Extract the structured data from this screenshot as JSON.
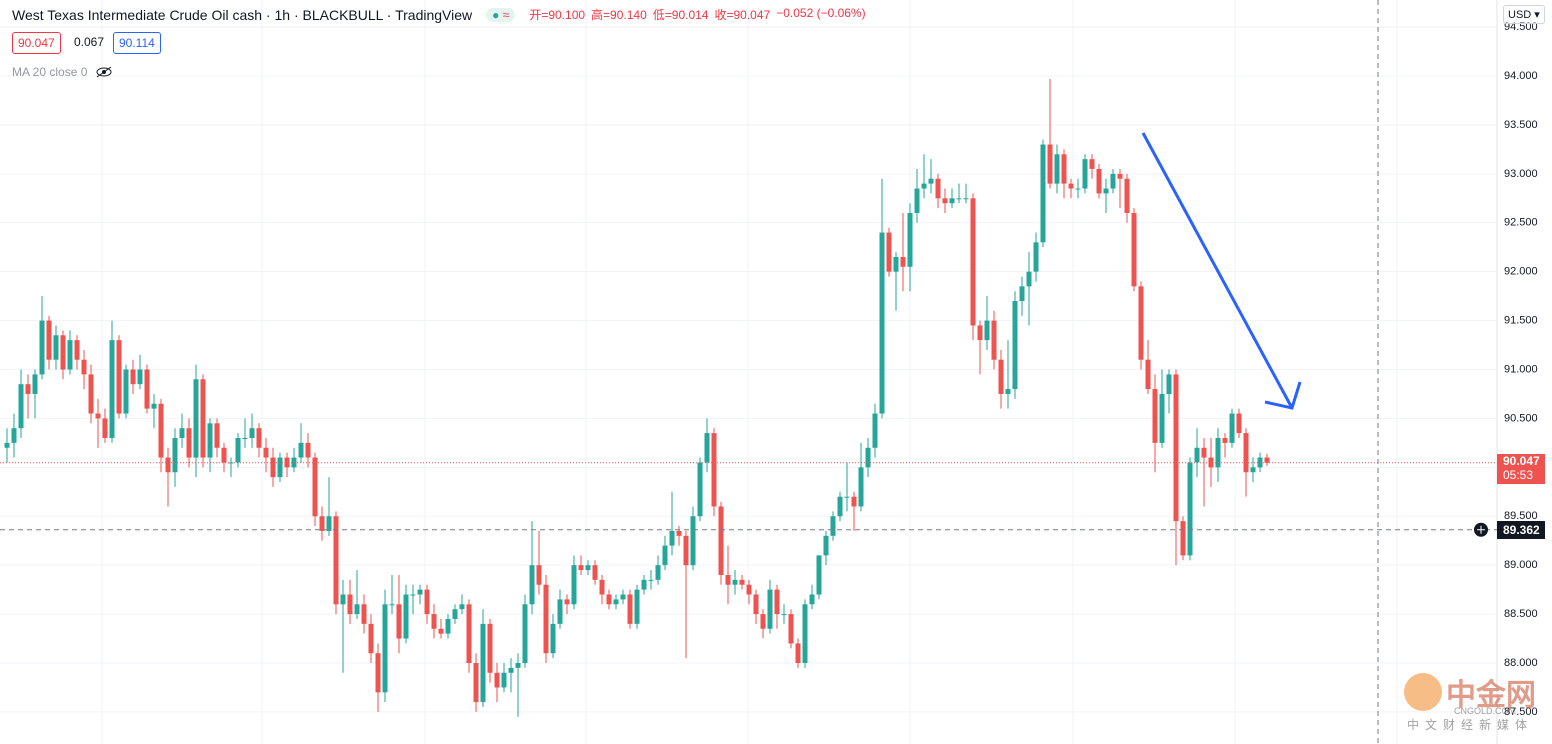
{
  "chart_data": {
    "type": "candlestick",
    "title": "West Texas Intermediate Crude Oil cash · 1h · BLACKBULL · TradingView",
    "ohlc_legend": [
      "开=90.100",
      "高=90.140",
      "低=90.014",
      "收=90.047"
    ],
    "change": "−0.052 (−0.06%)",
    "bid": "90.047",
    "spread": "0.067",
    "ask": "90.114",
    "indicator": "MA 20 close 0",
    "currency": "USD",
    "last_price_label": "90.047",
    "countdown": "05:53",
    "crosshair_price": 89.362,
    "watermark": {
      "logo": "中金网",
      "site": "CNGOLD.COM",
      "tagline": "中文财经新媒体"
    },
    "up_color": "#26a69a",
    "down_color": "#ef5350",
    "grid": true,
    "ylim": [
      87.172,
      94.777
    ],
    "yticks": [
      {
        "value": 87.5,
        "label": "87.500"
      },
      {
        "value": 88,
        "label": "88.000"
      },
      {
        "value": 88.5,
        "label": "88.500"
      },
      {
        "value": 89,
        "label": "89.000"
      },
      {
        "value": 89.5,
        "label": "89.500"
      },
      {
        "value": 90,
        "label": "90.000"
      },
      {
        "value": 90.5,
        "label": "90.500"
      },
      {
        "value": 91,
        "label": "91.000"
      },
      {
        "value": 91.5,
        "label": "91.500"
      },
      {
        "value": 92,
        "label": "92.000"
      },
      {
        "value": 92.5,
        "label": "92.500"
      },
      {
        "value": 93,
        "label": "93.000"
      },
      {
        "value": 93.5,
        "label": "93.500"
      },
      {
        "value": 94,
        "label": "94.000"
      },
      {
        "value": 94.5,
        "label": "94.500"
      }
    ],
    "candles": [
      [
        90.2,
        90.4,
        90.05,
        90.25
      ],
      [
        90.25,
        90.55,
        90.1,
        90.4
      ],
      [
        90.4,
        91.0,
        90.3,
        90.85
      ],
      [
        90.85,
        90.95,
        90.5,
        90.75
      ],
      [
        90.75,
        91.0,
        90.5,
        90.95
      ],
      [
        90.95,
        91.75,
        90.9,
        91.5
      ],
      [
        91.5,
        91.55,
        91.0,
        91.1
      ],
      [
        91.1,
        91.45,
        91.0,
        91.35
      ],
      [
        91.35,
        91.4,
        90.9,
        91.0
      ],
      [
        91.0,
        91.4,
        90.95,
        91.3
      ],
      [
        91.3,
        91.35,
        91.0,
        91.1
      ],
      [
        91.1,
        91.2,
        90.8,
        90.95
      ],
      [
        90.95,
        91.05,
        90.45,
        90.55
      ],
      [
        90.55,
        90.7,
        90.2,
        90.5
      ],
      [
        90.5,
        90.6,
        90.25,
        90.3
      ],
      [
        90.3,
        91.5,
        90.25,
        91.3
      ],
      [
        91.3,
        91.35,
        90.5,
        90.55
      ],
      [
        90.55,
        91.05,
        90.5,
        91.0
      ],
      [
        91.0,
        91.1,
        90.75,
        90.85
      ],
      [
        90.85,
        91.15,
        90.8,
        91.0
      ],
      [
        91.0,
        91.05,
        90.55,
        90.6
      ],
      [
        90.6,
        90.75,
        90.4,
        90.65
      ],
      [
        90.65,
        90.7,
        89.95,
        90.1
      ],
      [
        90.1,
        90.2,
        89.6,
        89.95
      ],
      [
        89.95,
        90.4,
        89.8,
        90.3
      ],
      [
        90.3,
        90.55,
        90.2,
        90.4
      ],
      [
        90.4,
        90.5,
        90.0,
        90.1
      ],
      [
        90.1,
        91.05,
        89.9,
        90.9
      ],
      [
        90.9,
        90.95,
        90.0,
        90.1
      ],
      [
        90.1,
        90.5,
        89.95,
        90.45
      ],
      [
        90.45,
        90.5,
        90.1,
        90.2
      ],
      [
        90.2,
        90.25,
        89.95,
        90.05
      ],
      [
        90.05,
        90.1,
        89.9,
        90.05
      ],
      [
        90.05,
        90.35,
        90.0,
        90.3
      ],
      [
        90.3,
        90.5,
        90.2,
        90.3
      ],
      [
        90.3,
        90.55,
        90.2,
        90.4
      ],
      [
        90.4,
        90.45,
        90.1,
        90.2
      ],
      [
        90.2,
        90.3,
        89.95,
        90.1
      ],
      [
        90.1,
        90.2,
        89.8,
        89.9
      ],
      [
        89.9,
        90.15,
        89.85,
        90.1
      ],
      [
        90.1,
        90.15,
        89.9,
        90.0
      ],
      [
        90.0,
        90.2,
        89.95,
        90.1
      ],
      [
        90.1,
        90.45,
        90.05,
        90.25
      ],
      [
        90.25,
        90.35,
        90.0,
        90.1
      ],
      [
        90.1,
        90.15,
        89.4,
        89.5
      ],
      [
        89.5,
        89.6,
        89.25,
        89.35
      ],
      [
        89.35,
        89.9,
        89.3,
        89.5
      ],
      [
        89.5,
        89.55,
        88.5,
        88.6
      ],
      [
        88.6,
        88.85,
        87.9,
        88.7
      ],
      [
        88.7,
        88.85,
        88.4,
        88.5
      ],
      [
        88.5,
        88.95,
        88.45,
        88.6
      ],
      [
        88.6,
        88.7,
        88.3,
        88.4
      ],
      [
        88.4,
        88.5,
        88.0,
        88.1
      ],
      [
        88.1,
        88.2,
        87.5,
        87.7
      ],
      [
        87.7,
        88.75,
        87.6,
        88.6
      ],
      [
        88.6,
        88.9,
        88.5,
        88.6
      ],
      [
        88.6,
        88.9,
        88.1,
        88.25
      ],
      [
        88.25,
        88.8,
        88.2,
        88.7
      ],
      [
        88.7,
        88.8,
        88.5,
        88.7
      ],
      [
        88.7,
        88.8,
        88.6,
        88.75
      ],
      [
        88.75,
        88.8,
        88.4,
        88.5
      ],
      [
        88.5,
        88.6,
        88.25,
        88.35
      ],
      [
        88.35,
        88.45,
        88.25,
        88.3
      ],
      [
        88.3,
        88.5,
        88.25,
        88.45
      ],
      [
        88.45,
        88.6,
        88.4,
        88.55
      ],
      [
        88.55,
        88.7,
        88.5,
        88.6
      ],
      [
        88.6,
        88.65,
        87.9,
        88.0
      ],
      [
        88.0,
        88.1,
        87.5,
        87.6
      ],
      [
        87.6,
        88.55,
        87.55,
        88.4
      ],
      [
        88.4,
        88.45,
        87.8,
        87.9
      ],
      [
        87.9,
        88.0,
        87.6,
        87.75
      ],
      [
        87.75,
        88.0,
        87.7,
        87.9
      ],
      [
        87.9,
        88.05,
        87.7,
        87.95
      ],
      [
        87.95,
        88.1,
        87.45,
        88.0
      ],
      [
        88.0,
        88.7,
        87.95,
        88.6
      ],
      [
        88.6,
        89.45,
        88.5,
        89.0
      ],
      [
        89.0,
        89.35,
        88.7,
        88.8
      ],
      [
        88.8,
        88.9,
        88.0,
        88.1
      ],
      [
        88.1,
        88.5,
        88.05,
        88.4
      ],
      [
        88.4,
        88.75,
        88.35,
        88.65
      ],
      [
        88.65,
        88.7,
        88.5,
        88.6
      ],
      [
        88.6,
        89.1,
        88.55,
        89.0
      ],
      [
        89.0,
        89.1,
        88.9,
        88.95
      ],
      [
        88.95,
        89.05,
        88.9,
        89.0
      ],
      [
        89.0,
        89.05,
        88.8,
        88.85
      ],
      [
        88.85,
        88.9,
        88.6,
        88.7
      ],
      [
        88.7,
        88.75,
        88.55,
        88.6
      ],
      [
        88.6,
        88.7,
        88.55,
        88.65
      ],
      [
        88.65,
        88.75,
        88.6,
        88.7
      ],
      [
        88.7,
        88.75,
        88.35,
        88.4
      ],
      [
        88.4,
        88.8,
        88.35,
        88.75
      ],
      [
        88.75,
        88.9,
        88.7,
        88.85
      ],
      [
        88.85,
        88.95,
        88.75,
        88.85
      ],
      [
        88.85,
        89.1,
        88.8,
        89.0
      ],
      [
        89.0,
        89.3,
        88.95,
        89.2
      ],
      [
        89.2,
        89.75,
        89.1,
        89.35
      ],
      [
        89.35,
        89.4,
        89.2,
        89.3
      ],
      [
        89.3,
        89.35,
        88.05,
        89.0
      ],
      [
        89.0,
        89.6,
        88.95,
        89.5
      ],
      [
        89.5,
        90.1,
        89.45,
        90.05
      ],
      [
        90.05,
        90.5,
        89.95,
        90.35
      ],
      [
        90.35,
        90.4,
        89.5,
        89.6
      ],
      [
        89.6,
        89.65,
        88.8,
        88.9
      ],
      [
        88.9,
        89.2,
        88.6,
        88.8
      ],
      [
        88.8,
        88.95,
        88.7,
        88.85
      ],
      [
        88.85,
        88.9,
        88.75,
        88.8
      ],
      [
        88.8,
        88.85,
        88.6,
        88.7
      ],
      [
        88.7,
        88.75,
        88.4,
        88.5
      ],
      [
        88.5,
        88.55,
        88.25,
        88.35
      ],
      [
        88.35,
        88.85,
        88.3,
        88.75
      ],
      [
        88.75,
        88.8,
        88.35,
        88.5
      ],
      [
        88.5,
        88.6,
        88.4,
        88.5
      ],
      [
        88.5,
        88.55,
        88.15,
        88.2
      ],
      [
        88.2,
        88.25,
        87.95,
        88.0
      ],
      [
        88.0,
        88.65,
        87.95,
        88.6
      ],
      [
        88.6,
        88.8,
        88.55,
        88.7
      ],
      [
        88.7,
        89.1,
        88.65,
        89.1
      ],
      [
        89.1,
        89.35,
        89.0,
        89.3
      ],
      [
        89.3,
        89.55,
        89.25,
        89.5
      ],
      [
        89.5,
        89.75,
        89.45,
        89.7
      ],
      [
        89.7,
        90.05,
        89.55,
        89.7
      ],
      [
        89.7,
        89.75,
        89.35,
        89.6
      ],
      [
        89.6,
        90.25,
        89.55,
        90.0
      ],
      [
        90.0,
        90.3,
        89.9,
        90.2
      ],
      [
        90.2,
        90.65,
        90.1,
        90.55
      ],
      [
        90.55,
        92.95,
        90.5,
        92.4
      ],
      [
        92.4,
        92.45,
        91.95,
        92.0
      ],
      [
        92.0,
        92.2,
        91.6,
        92.15
      ],
      [
        92.15,
        92.6,
        91.8,
        92.05
      ],
      [
        92.05,
        92.7,
        91.8,
        92.6
      ],
      [
        92.6,
        93.05,
        92.5,
        92.85
      ],
      [
        92.85,
        93.2,
        92.75,
        92.9
      ],
      [
        92.9,
        93.15,
        92.8,
        92.95
      ],
      [
        92.95,
        93.0,
        92.65,
        92.75
      ],
      [
        92.75,
        92.85,
        92.6,
        92.7
      ],
      [
        92.7,
        92.85,
        92.65,
        92.75
      ],
      [
        92.75,
        92.9,
        92.7,
        92.75
      ],
      [
        92.75,
        92.9,
        92.7,
        92.75
      ],
      [
        92.75,
        92.8,
        91.3,
        91.45
      ],
      [
        91.45,
        91.5,
        90.95,
        91.3
      ],
      [
        91.3,
        91.75,
        91.2,
        91.5
      ],
      [
        91.5,
        91.6,
        91.0,
        91.1
      ],
      [
        91.1,
        91.2,
        90.6,
        90.75
      ],
      [
        90.75,
        91.3,
        90.6,
        90.8
      ],
      [
        90.8,
        91.8,
        90.7,
        91.7
      ],
      [
        91.7,
        91.95,
        91.55,
        91.85
      ],
      [
        91.85,
        92.2,
        91.45,
        92.0
      ],
      [
        92.0,
        92.4,
        91.9,
        92.3
      ],
      [
        92.3,
        93.35,
        92.25,
        93.3
      ],
      [
        93.3,
        93.97,
        92.85,
        92.9
      ],
      [
        92.9,
        93.3,
        92.8,
        93.2
      ],
      [
        93.2,
        93.25,
        92.75,
        92.9
      ],
      [
        92.9,
        92.95,
        92.75,
        92.85
      ],
      [
        92.85,
        92.95,
        92.75,
        92.85
      ],
      [
        92.85,
        93.2,
        92.8,
        93.15
      ],
      [
        93.15,
        93.2,
        92.95,
        93.05
      ],
      [
        93.05,
        93.1,
        92.75,
        92.8
      ],
      [
        92.8,
        92.95,
        92.6,
        92.85
      ],
      [
        92.85,
        93.05,
        92.8,
        93.0
      ],
      [
        93.0,
        93.05,
        92.65,
        92.95
      ],
      [
        92.95,
        93.0,
        92.5,
        92.6
      ],
      [
        92.6,
        92.65,
        91.8,
        91.85
      ],
      [
        91.85,
        91.9,
        91.0,
        91.1
      ],
      [
        91.1,
        91.3,
        90.75,
        90.8
      ],
      [
        90.8,
        90.95,
        89.95,
        90.25
      ],
      [
        90.25,
        91.0,
        90.2,
        90.75
      ],
      [
        90.75,
        91.0,
        90.55,
        90.95
      ],
      [
        90.95,
        91.0,
        89.0,
        89.45
      ],
      [
        89.45,
        89.5,
        89.05,
        89.1
      ],
      [
        89.1,
        90.1,
        89.05,
        90.05
      ],
      [
        90.05,
        90.4,
        89.9,
        90.2
      ],
      [
        90.2,
        90.3,
        89.6,
        90.1
      ],
      [
        90.1,
        90.3,
        89.8,
        90.0
      ],
      [
        90.0,
        90.4,
        89.85,
        90.3
      ],
      [
        90.3,
        90.35,
        90.1,
        90.25
      ],
      [
        90.25,
        90.6,
        90.2,
        90.55
      ],
      [
        90.55,
        90.6,
        90.3,
        90.35
      ],
      [
        90.35,
        90.4,
        89.7,
        89.95
      ],
      [
        89.95,
        90.1,
        89.85,
        90.0
      ],
      [
        90.0,
        90.15,
        89.95,
        90.1
      ],
      [
        90.1,
        90.14,
        90.014,
        90.047
      ]
    ]
  }
}
